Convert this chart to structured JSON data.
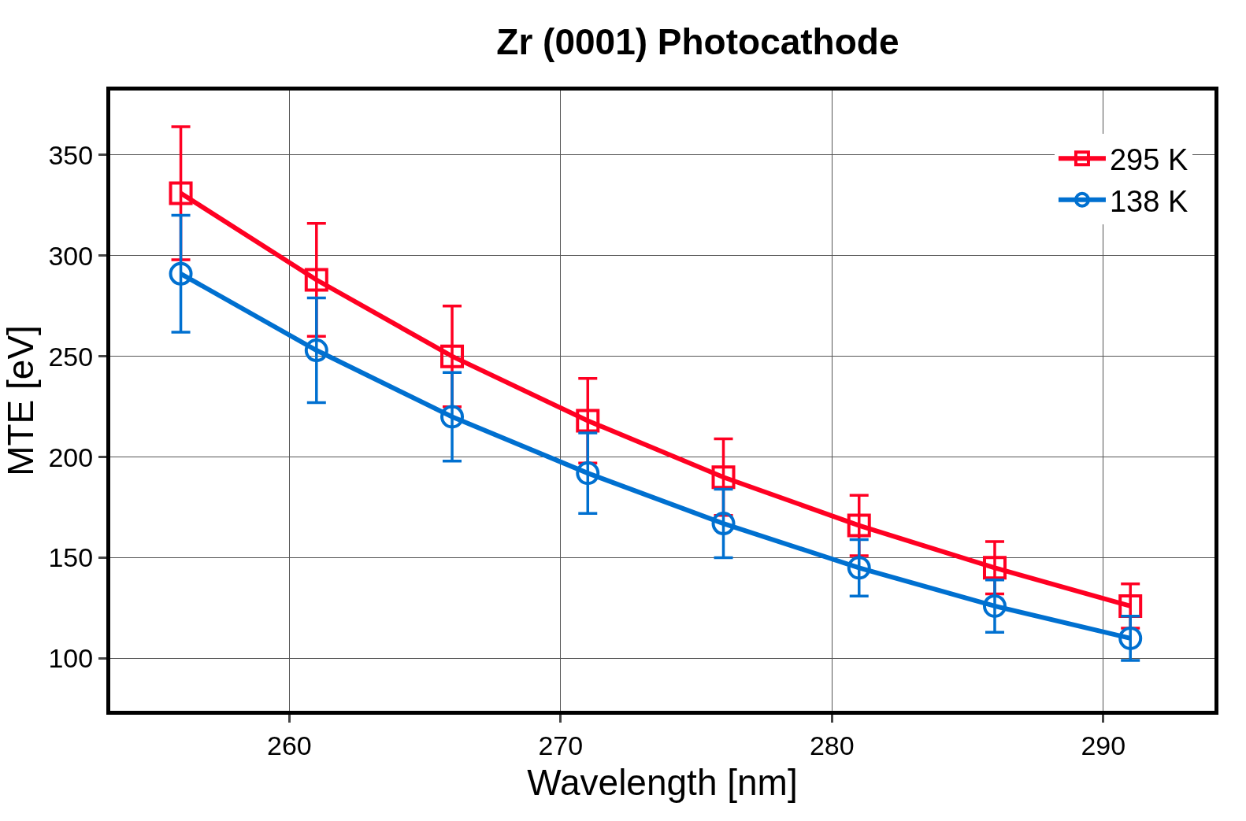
{
  "chart_data": {
    "type": "line",
    "title": "Zr (0001) Photocathode",
    "xlabel": "Wavelength [nm]",
    "ylabel": "MTE [eV]",
    "x": [
      256,
      261,
      266,
      271,
      276,
      281,
      286,
      291
    ],
    "series": [
      {
        "name": "295 K",
        "color": "#ff0022",
        "marker": "square",
        "values": [
          331,
          288,
          250,
          218,
          190,
          166,
          145,
          126
        ],
        "errors": [
          33,
          28,
          25,
          21,
          19,
          15,
          13,
          11
        ]
      },
      {
        "name": "138 K",
        "color": "#0070d0",
        "marker": "circle",
        "values": [
          291,
          253,
          220,
          192,
          167,
          145,
          126,
          110
        ],
        "errors": [
          29,
          26,
          22,
          20,
          17,
          14,
          13,
          11
        ]
      }
    ],
    "xlim": [
      253.4,
      294.1
    ],
    "ylim": [
      74,
      382
    ],
    "xticks": [
      260,
      270,
      280,
      290
    ],
    "yticks": [
      100,
      150,
      200,
      250,
      300,
      350
    ],
    "grid": true,
    "legend": "top right",
    "line_style": "solid"
  }
}
